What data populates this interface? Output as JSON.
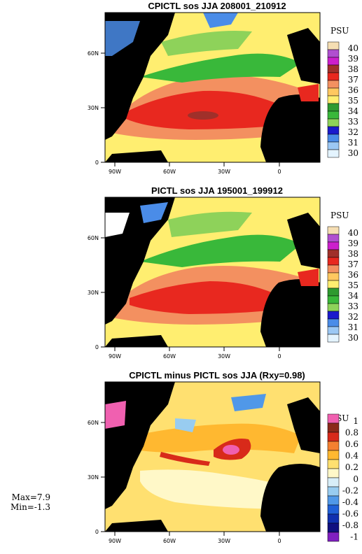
{
  "panels": [
    {
      "title": "CPICTL sos JJA 208001_210912",
      "unit": "PSU",
      "colorbar_labels": [
        "40",
        "39",
        "38",
        "37",
        "36",
        "35",
        "34",
        "33",
        "32",
        "31",
        "30"
      ]
    },
    {
      "title": "PICTL sos JJA 195001_199912",
      "unit": "PSU",
      "colorbar_labels": [
        "40",
        "39",
        "38",
        "37",
        "36",
        "35",
        "34",
        "33",
        "32",
        "31",
        "30"
      ]
    },
    {
      "title": "CPICTL minus PICTL sos JJA (Rxy=0.98)",
      "unit": "PSU",
      "colorbar_labels": [
        "1",
        "0.8",
        "0.6",
        "0.4",
        "0.2",
        "0",
        "-0.2",
        "-0.4",
        "-0.6",
        "-0.8",
        "-1"
      ]
    }
  ],
  "axes": {
    "y_ticks": [
      "60N",
      "30N",
      "0"
    ],
    "x_ticks": [
      "90W",
      "60W",
      "30W",
      "0"
    ]
  },
  "stats": {
    "max": "Max=7.9",
    "min": "Min=-1.3"
  },
  "colors": {
    "land": "#000000",
    "abs_scale": [
      "#f5deb3",
      "#b04fd0",
      "#cc1fcc",
      "#a0302a",
      "#e8281f",
      "#f39060",
      "#ffc860",
      "#ffee70",
      "#2e9a30",
      "#39b83a",
      "#8ed25a",
      "#1a1acc",
      "#4a8ce8",
      "#9cc8f4",
      "#e4f4ff"
    ],
    "diff_scale": [
      "#f060b0",
      "#8b2a1a",
      "#d82a1a",
      "#f48030",
      "#ffb830",
      "#ffe070",
      "#fff8c8",
      "#d8eef8",
      "#98ccf0",
      "#5098e8",
      "#2060d8",
      "#1030b0",
      "#101080",
      "#8020c0"
    ]
  }
}
